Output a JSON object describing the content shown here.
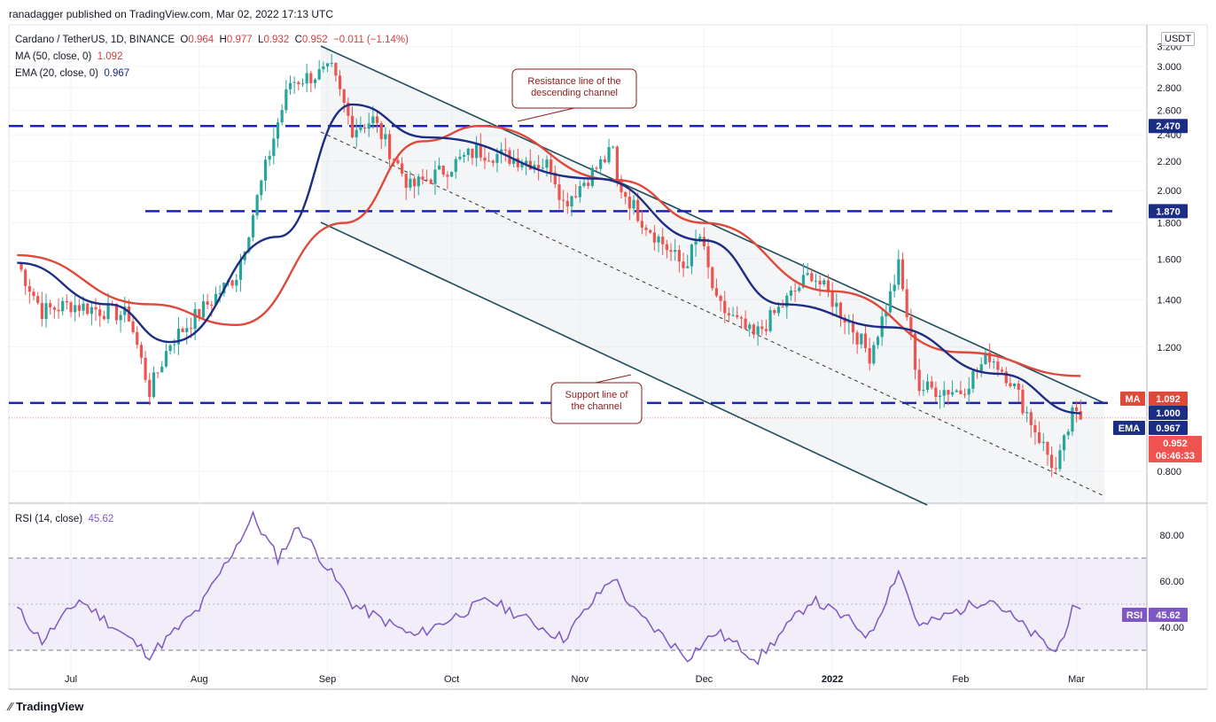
{
  "header": {
    "published": "ranadagger published on TradingView.com, Mar 02, 2022 17:13 UTC"
  },
  "legend": {
    "symbol": "Cardano / TetherUS, 1D, BINANCE",
    "o_label": "O",
    "o": "0.964",
    "h_label": "H",
    "h": "0.977",
    "l_label": "L",
    "l": "0.932",
    "c_label": "C",
    "c": "0.952",
    "change": "−0.011 (−1.14%)",
    "ma_label": "MA (50, close, 0)",
    "ma_value": "1.092",
    "ema_label": "EMA (20, close, 0)",
    "ema_value": "0.967"
  },
  "rsi_legend": {
    "label": "RSI (14, close)",
    "value": "45.62"
  },
  "unit_label": "USDT",
  "footer": {
    "brand": "TradingView"
  },
  "annotations": {
    "resistance": [
      "Resistance line of the",
      "descending channel"
    ],
    "support": [
      "Support line of",
      "the channel"
    ]
  },
  "price_tags": {
    "ma": {
      "label": "MA",
      "value": "1.092"
    },
    "level_100": {
      "value": "1.000"
    },
    "ema": {
      "label": "EMA",
      "value": "0.967"
    },
    "last": {
      "value": "0.952",
      "countdown": "06:46:33"
    },
    "level_2470": {
      "value": "2.470"
    },
    "level_1870": {
      "value": "1.870"
    }
  },
  "rsi_tag": {
    "label": "RSI",
    "value": "45.62"
  },
  "colors": {
    "up": "#26a69a",
    "down": "#ef5350",
    "ma": "#e0483a",
    "ema": "#1b2d84",
    "level": "#1a22b8",
    "channel": "#1d4d5a",
    "rsi": "#7e57c2",
    "annotation": "#8b1a1a"
  },
  "chart_data": [
    {
      "type": "candlestick",
      "title": "Cardano / TetherUS, 1D, BINANCE",
      "x_ticks": [
        "Jul",
        "Aug",
        "Sep",
        "Oct",
        "Nov",
        "Dec",
        "2022",
        "Feb",
        "Mar"
      ],
      "y_ticks": [
        "3.200",
        "3.000",
        "2.800",
        "2.600",
        "2.400",
        "2.200",
        "2.000",
        "1.800",
        "1.600",
        "1.400",
        "1.200",
        "1.000",
        "0.800"
      ],
      "y_scale": "log",
      "ylim": [
        0.66,
        3.2
      ],
      "horizontal_levels": [
        2.47,
        1.87,
        1.0
      ],
      "key_points": [
        {
          "date": "2021-06-18",
          "close": 1.58
        },
        {
          "date": "2021-06-24",
          "close": 1.35
        },
        {
          "date": "2021-07-01",
          "close": 1.38
        },
        {
          "date": "2021-07-15",
          "close": 1.33
        },
        {
          "date": "2021-07-20",
          "close": 1.04
        },
        {
          "date": "2021-07-25",
          "close": 1.22
        },
        {
          "date": "2021-08-10",
          "close": 1.52
        },
        {
          "date": "2021-08-20",
          "close": 2.5
        },
        {
          "date": "2021-08-23",
          "close": 2.85
        },
        {
          "date": "2021-09-02",
          "close": 2.96
        },
        {
          "date": "2021-09-07",
          "close": 2.45
        },
        {
          "date": "2021-09-12",
          "close": 2.52
        },
        {
          "date": "2021-09-21",
          "close": 2.02
        },
        {
          "date": "2021-09-28",
          "close": 2.12
        },
        {
          "date": "2021-10-07",
          "close": 2.28
        },
        {
          "date": "2021-10-25",
          "close": 2.17
        },
        {
          "date": "2021-10-28",
          "close": 1.92
        },
        {
          "date": "2021-11-09",
          "close": 2.28
        },
        {
          "date": "2021-11-10",
          "close": 2.06
        },
        {
          "date": "2021-11-16",
          "close": 1.82
        },
        {
          "date": "2021-11-26",
          "close": 1.56
        },
        {
          "date": "2021-11-30",
          "close": 1.72
        },
        {
          "date": "2021-12-04",
          "close": 1.38
        },
        {
          "date": "2021-12-13",
          "close": 1.24
        },
        {
          "date": "2021-12-27",
          "close": 1.53
        },
        {
          "date": "2022-01-05",
          "close": 1.3
        },
        {
          "date": "2022-01-10",
          "close": 1.17
        },
        {
          "date": "2022-01-15",
          "close": 1.42
        },
        {
          "date": "2022-01-17",
          "close": 1.56
        },
        {
          "date": "2022-01-22",
          "close": 1.05
        },
        {
          "date": "2022-02-01",
          "close": 1.04
        },
        {
          "date": "2022-02-08",
          "close": 1.17
        },
        {
          "date": "2022-02-13",
          "close": 1.08
        },
        {
          "date": "2022-02-24",
          "close": 0.8
        },
        {
          "date": "2022-02-28",
          "close": 0.96
        },
        {
          "date": "2022-03-02",
          "close": 0.952
        }
      ],
      "ma_50_points": [
        {
          "date": "2021-06-18",
          "value": 1.62
        },
        {
          "date": "2021-07-20",
          "value": 1.38
        },
        {
          "date": "2021-08-10",
          "value": 1.29
        },
        {
          "date": "2021-09-05",
          "value": 1.8
        },
        {
          "date": "2021-09-24",
          "value": 2.35
        },
        {
          "date": "2021-10-08",
          "value": 2.47
        },
        {
          "date": "2021-11-10",
          "value": 2.07
        },
        {
          "date": "2021-12-01",
          "value": 1.8
        },
        {
          "date": "2022-01-01",
          "value": 1.44
        },
        {
          "date": "2022-02-01",
          "value": 1.18
        },
        {
          "date": "2022-03-02",
          "value": 1.092
        }
      ],
      "ema_20_points": [
        {
          "date": "2021-06-18",
          "value": 1.58
        },
        {
          "date": "2021-07-10",
          "value": 1.38
        },
        {
          "date": "2021-07-25",
          "value": 1.22
        },
        {
          "date": "2021-08-20",
          "value": 1.72
        },
        {
          "date": "2021-09-07",
          "value": 2.65
        },
        {
          "date": "2021-09-25",
          "value": 2.38
        },
        {
          "date": "2021-11-05",
          "value": 2.08
        },
        {
          "date": "2021-12-01",
          "value": 1.7
        },
        {
          "date": "2021-12-20",
          "value": 1.38
        },
        {
          "date": "2022-01-15",
          "value": 1.28
        },
        {
          "date": "2022-02-10",
          "value": 1.1
        },
        {
          "date": "2022-03-02",
          "value": 0.967
        }
      ],
      "annotations": [
        "Resistance line of the descending channel",
        "Support line of the channel"
      ]
    },
    {
      "type": "line",
      "title": "RSI (14, close)",
      "y_ticks": [
        "80.00",
        "60.00",
        "40.00"
      ],
      "ylim": [
        24,
        92
      ],
      "band": [
        30,
        70
      ],
      "key_points": [
        {
          "date": "2021-06-18",
          "value": 48
        },
        {
          "date": "2021-06-24",
          "value": 34
        },
        {
          "date": "2021-07-03",
          "value": 52
        },
        {
          "date": "2021-07-20",
          "value": 28
        },
        {
          "date": "2021-08-01",
          "value": 48
        },
        {
          "date": "2021-08-14",
          "value": 88
        },
        {
          "date": "2021-08-20",
          "value": 70
        },
        {
          "date": "2021-08-25",
          "value": 84
        },
        {
          "date": "2021-09-07",
          "value": 50
        },
        {
          "date": "2021-09-22",
          "value": 36
        },
        {
          "date": "2021-10-10",
          "value": 52
        },
        {
          "date": "2021-10-28",
          "value": 35
        },
        {
          "date": "2021-11-09",
          "value": 62
        },
        {
          "date": "2021-11-14",
          "value": 47
        },
        {
          "date": "2021-11-27",
          "value": 27
        },
        {
          "date": "2021-12-04",
          "value": 38
        },
        {
          "date": "2021-12-14",
          "value": 26
        },
        {
          "date": "2021-12-27",
          "value": 52
        },
        {
          "date": "2022-01-05",
          "value": 43
        },
        {
          "date": "2022-01-10",
          "value": 36
        },
        {
          "date": "2022-01-17",
          "value": 65
        },
        {
          "date": "2022-01-22",
          "value": 40
        },
        {
          "date": "2022-02-08",
          "value": 53
        },
        {
          "date": "2022-02-15",
          "value": 42
        },
        {
          "date": "2022-02-24",
          "value": 29
        },
        {
          "date": "2022-02-28",
          "value": 47
        },
        {
          "date": "2022-03-02",
          "value": 45.62
        }
      ]
    }
  ]
}
